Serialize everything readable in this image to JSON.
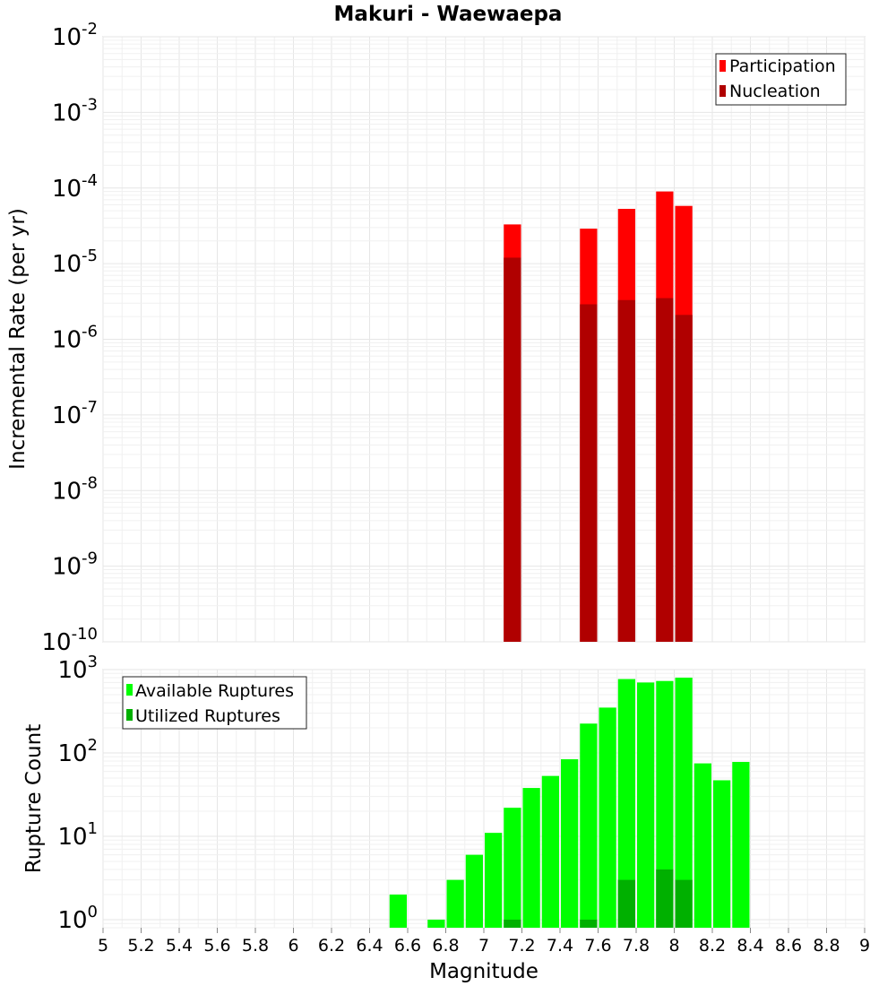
{
  "title": "Makuri - Waewaepa",
  "colors": {
    "participation": "#ff0000",
    "nucleation": "#b00000",
    "available": "#00ff00",
    "utilized": "#00b000"
  },
  "x_axis": {
    "label": "Magnitude",
    "range": [
      5,
      9
    ],
    "ticks": [
      "5",
      "5.2",
      "5.4",
      "5.6",
      "5.8",
      "6",
      "6.2",
      "6.4",
      "6.6",
      "6.8",
      "7",
      "7.2",
      "7.4",
      "7.6",
      "7.8",
      "8",
      "8.2",
      "8.4",
      "8.6",
      "8.8",
      "9"
    ]
  },
  "chart_data": [
    {
      "type": "bar",
      "scale": "log",
      "ylabel": "Incremental Rate (per yr)",
      "ylim": [
        1e-10,
        0.01
      ],
      "y_ticks": [
        {
          "exp": -2,
          "base": "10",
          "sup": "-2"
        },
        {
          "exp": -3,
          "base": "10",
          "sup": "-3"
        },
        {
          "exp": -4,
          "base": "10",
          "sup": "-4"
        },
        {
          "exp": -5,
          "base": "10",
          "sup": "-5"
        },
        {
          "exp": -6,
          "base": "10",
          "sup": "-6"
        },
        {
          "exp": -7,
          "base": "10",
          "sup": "-7"
        },
        {
          "exp": -8,
          "base": "10",
          "sup": "-8"
        },
        {
          "exp": -9,
          "base": "10",
          "sup": "-9"
        },
        {
          "exp": -10,
          "base": "10",
          "sup": "-10"
        }
      ],
      "legend": {
        "position": "top-right",
        "entries": [
          "Participation",
          "Nucleation"
        ]
      },
      "series": [
        {
          "name": "Participation",
          "x": [
            7.15,
            7.55,
            7.75,
            7.95,
            8.05
          ],
          "values": [
            3.3e-05,
            2.9e-05,
            5.3e-05,
            9e-05,
            5.8e-05
          ]
        },
        {
          "name": "Nucleation",
          "x": [
            7.15,
            7.55,
            7.75,
            7.95,
            8.05
          ],
          "values": [
            1.2e-05,
            2.9e-06,
            3.3e-06,
            3.5e-06,
            2.1e-06
          ]
        }
      ]
    },
    {
      "type": "bar",
      "scale": "log",
      "ylabel": "Rupture Count",
      "ylim": [
        0.8,
        1000
      ],
      "y_ticks": [
        {
          "exp": 3,
          "base": "10",
          "sup": "3"
        },
        {
          "exp": 2,
          "base": "10",
          "sup": "2"
        },
        {
          "exp": 1,
          "base": "10",
          "sup": "1"
        },
        {
          "exp": 0,
          "base": "10",
          "sup": "0"
        }
      ],
      "legend": {
        "position": "top-left",
        "entries": [
          "Available Ruptures",
          "Utilized Ruptures"
        ]
      },
      "series": [
        {
          "name": "Available Ruptures",
          "x": [
            6.55,
            6.75,
            6.85,
            6.95,
            7.05,
            7.15,
            7.25,
            7.35,
            7.45,
            7.55,
            7.65,
            7.75,
            7.85,
            7.95,
            8.05,
            8.15,
            8.25,
            8.35
          ],
          "values": [
            2,
            1,
            3,
            6,
            11,
            22,
            38,
            53,
            84,
            225,
            350,
            770,
            700,
            730,
            800,
            75,
            47,
            78
          ]
        },
        {
          "name": "Utilized Ruptures",
          "x": [
            7.15,
            7.55,
            7.75,
            7.95,
            8.05
          ],
          "values": [
            1,
            1,
            3,
            4,
            3
          ]
        }
      ]
    }
  ]
}
